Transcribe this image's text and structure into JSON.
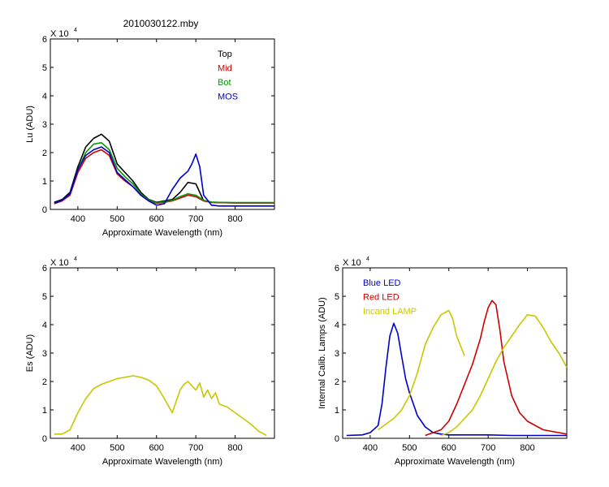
{
  "figure_title": "2010030122.mby",
  "chart_data": [
    {
      "type": "line",
      "id": "lu",
      "xlabel": "Approximate Wavelength (nm)",
      "ylabel": "Lu (ADU)",
      "xlim": [
        330,
        900
      ],
      "ylim": [
        0,
        6
      ],
      "xticks": [
        400,
        500,
        600,
        700,
        800
      ],
      "yticks": [
        0,
        1,
        2,
        3,
        4,
        5,
        6
      ],
      "y_multiplier": "X 10",
      "y_multiplier_exp": "4",
      "legend": "top-right",
      "series": [
        {
          "name": "Top",
          "color": "#000000",
          "x": [
            340,
            360,
            380,
            400,
            420,
            440,
            460,
            480,
            500,
            520,
            540,
            560,
            580,
            600,
            620,
            640,
            660,
            680,
            700,
            720,
            740,
            760,
            800,
            850,
            900
          ],
          "y": [
            0.25,
            0.35,
            0.6,
            1.5,
            2.2,
            2.5,
            2.65,
            2.4,
            1.6,
            1.3,
            1.0,
            0.6,
            0.35,
            0.25,
            0.3,
            0.35,
            0.6,
            0.95,
            0.9,
            0.3,
            0.25,
            0.24,
            0.23,
            0.23,
            0.23
          ]
        },
        {
          "name": "Mid",
          "color": "#cc0000",
          "x": [
            340,
            360,
            380,
            400,
            420,
            440,
            460,
            480,
            500,
            520,
            540,
            560,
            580,
            600,
            620,
            640,
            660,
            680,
            700,
            720,
            740,
            760,
            800,
            850,
            900
          ],
          "y": [
            0.2,
            0.3,
            0.5,
            1.3,
            1.8,
            2.0,
            2.1,
            1.9,
            1.25,
            1.0,
            0.8,
            0.5,
            0.3,
            0.22,
            0.25,
            0.3,
            0.4,
            0.5,
            0.45,
            0.3,
            0.25,
            0.24,
            0.23,
            0.23,
            0.23
          ]
        },
        {
          "name": "Bot",
          "color": "#009900",
          "x": [
            340,
            360,
            380,
            400,
            420,
            440,
            460,
            480,
            500,
            520,
            540,
            560,
            580,
            600,
            620,
            640,
            660,
            680,
            700,
            720,
            740,
            760,
            800,
            850,
            900
          ],
          "y": [
            0.22,
            0.32,
            0.55,
            1.4,
            2.0,
            2.3,
            2.35,
            2.1,
            1.45,
            1.15,
            0.9,
            0.55,
            0.33,
            0.23,
            0.27,
            0.32,
            0.45,
            0.55,
            0.5,
            0.32,
            0.26,
            0.25,
            0.24,
            0.24,
            0.24
          ]
        },
        {
          "name": "MOS",
          "color": "#0000cc",
          "x": [
            340,
            360,
            380,
            400,
            420,
            440,
            460,
            480,
            500,
            520,
            540,
            560,
            580,
            600,
            620,
            640,
            660,
            680,
            690,
            700,
            710,
            720,
            740,
            760,
            800,
            850,
            900
          ],
          "y": [
            0.22,
            0.32,
            0.55,
            1.4,
            1.9,
            2.1,
            2.2,
            2.0,
            1.3,
            1.05,
            0.8,
            0.5,
            0.3,
            0.15,
            0.2,
            0.7,
            1.1,
            1.35,
            1.6,
            1.95,
            1.5,
            0.5,
            0.15,
            0.12,
            0.12,
            0.12,
            0.12
          ]
        }
      ]
    },
    {
      "type": "line",
      "id": "es",
      "xlabel": "Approximate Wavelength (nm)",
      "ylabel": "Es (ADU)",
      "xlim": [
        330,
        900
      ],
      "ylim": [
        0,
        6
      ],
      "xticks": [
        400,
        500,
        600,
        700,
        800
      ],
      "yticks": [
        0,
        1,
        2,
        3,
        4,
        5,
        6
      ],
      "y_multiplier": "X 10",
      "y_multiplier_exp": "4",
      "series": [
        {
          "name": "",
          "color": "#c8c800",
          "x": [
            340,
            360,
            380,
            400,
            420,
            440,
            460,
            480,
            500,
            520,
            540,
            560,
            580,
            600,
            620,
            640,
            650,
            660,
            670,
            680,
            690,
            700,
            710,
            720,
            730,
            740,
            750,
            760,
            780,
            800,
            820,
            840,
            860,
            880
          ],
          "y": [
            0.15,
            0.15,
            0.3,
            0.9,
            1.4,
            1.75,
            1.9,
            2.0,
            2.1,
            2.15,
            2.2,
            2.15,
            2.05,
            1.85,
            1.4,
            0.9,
            1.3,
            1.7,
            1.9,
            2.0,
            1.85,
            1.7,
            1.95,
            1.45,
            1.7,
            1.4,
            1.6,
            1.2,
            1.1,
            0.9,
            0.7,
            0.5,
            0.25,
            0.1
          ]
        }
      ]
    },
    {
      "type": "line",
      "id": "lamps",
      "xlabel": "Approximate Wavelength (nm)",
      "ylabel": "Internal Calib. Lamps (ADU)",
      "xlim": [
        330,
        900
      ],
      "ylim": [
        0,
        6
      ],
      "xticks": [
        400,
        500,
        600,
        700,
        800
      ],
      "yticks": [
        0,
        1,
        2,
        3,
        4,
        5,
        6
      ],
      "y_multiplier": "X 10",
      "y_multiplier_exp": "4",
      "legend": "top-left",
      "series": [
        {
          "name": "Blue LED",
          "color": "#0000cc",
          "x": [
            340,
            380,
            400,
            420,
            430,
            440,
            450,
            460,
            470,
            480,
            490,
            500,
            510,
            520,
            540,
            560,
            580,
            600,
            640,
            700,
            760,
            800,
            850,
            900
          ],
          "y": [
            0.1,
            0.12,
            0.2,
            0.45,
            1.2,
            2.5,
            3.6,
            4.05,
            3.7,
            2.9,
            2.1,
            1.6,
            1.2,
            0.8,
            0.4,
            0.2,
            0.15,
            0.12,
            0.12,
            0.12,
            0.1,
            0.1,
            0.1,
            0.1
          ]
        },
        {
          "name": "Red LED",
          "color": "#cc0000",
          "x": [
            540,
            580,
            600,
            620,
            640,
            660,
            680,
            690,
            700,
            710,
            720,
            730,
            740,
            760,
            780,
            800,
            840,
            900
          ],
          "y": [
            0.1,
            0.3,
            0.6,
            1.2,
            1.9,
            2.6,
            3.5,
            4.1,
            4.6,
            4.85,
            4.7,
            3.8,
            2.7,
            1.5,
            0.9,
            0.6,
            0.3,
            0.15
          ]
        },
        {
          "name": "Incand LAMP",
          "color": "#c8c800",
          "x": [
            420,
            440,
            460,
            480,
            500,
            520,
            540,
            560,
            580,
            600,
            610,
            620,
            640
          ],
          "y": [
            0.3,
            0.5,
            0.7,
            1.0,
            1.5,
            2.3,
            3.3,
            3.9,
            4.35,
            4.5,
            4.2,
            3.6,
            2.9
          ]
        },
        {
          "name": "",
          "color": "#c8c800",
          "x": [
            580,
            600,
            620,
            640,
            660,
            680,
            700,
            720,
            740,
            760,
            780,
            800,
            820,
            840,
            860,
            880,
            900
          ],
          "y": [
            0.1,
            0.2,
            0.4,
            0.7,
            1.0,
            1.5,
            2.1,
            2.7,
            3.2,
            3.6,
            4.0,
            4.35,
            4.3,
            3.9,
            3.4,
            3.0,
            2.5
          ]
        }
      ]
    }
  ]
}
